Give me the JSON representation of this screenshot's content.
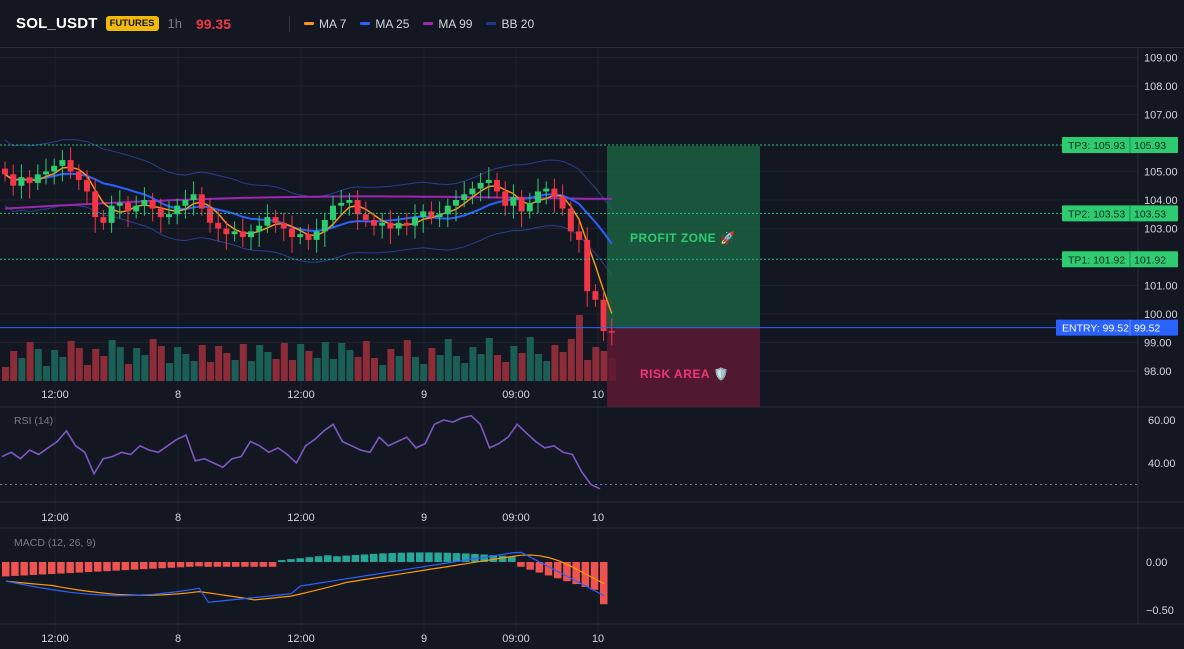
{
  "header": {
    "symbol": "SOL_USDT",
    "badge": "FUTURES",
    "timeframe": "1h",
    "last_price": "99.35",
    "legend": [
      {
        "label": "MA 7",
        "color": "#f7931a"
      },
      {
        "label": "MA 25",
        "color": "#2962ff"
      },
      {
        "label": "MA 99",
        "color": "#9c27b0"
      },
      {
        "label": "BB 20",
        "color": "#1e3a8a"
      }
    ]
  },
  "price_axis": {
    "labels": [
      "109.00",
      "108.00",
      "107.00",
      "105.00",
      "104.00",
      "103.00",
      "101.00",
      "100.00",
      "99.00",
      "98.00"
    ]
  },
  "time_axis": {
    "labels": [
      "12:00",
      "8",
      "12:00",
      "9",
      "09:00",
      "10"
    ]
  },
  "levels": [
    {
      "key": "tp3",
      "label": "TP3: 105.93",
      "value": "105.93",
      "price": 105.93
    },
    {
      "key": "tp2",
      "label": "TP2: 103.53",
      "value": "103.53",
      "price": 103.53
    },
    {
      "key": "tp1",
      "label": "TP1: 101.92",
      "value": "101.92",
      "price": 101.92
    },
    {
      "key": "entry",
      "label": "ENTRY: 99.52",
      "value": "99.52",
      "price": 99.52
    }
  ],
  "zones": {
    "profit": "PROFIT ZONE 🚀",
    "risk": "RISK AREA 🛡️"
  },
  "rsi": {
    "title": "RSI (14)",
    "labels": [
      "60.00",
      "40.00"
    ]
  },
  "macd": {
    "title": "MACD (12, 26, 9)",
    "labels": [
      "0.00",
      "−0.50"
    ]
  },
  "colors": {
    "up": "#26a69a",
    "up_bright": "#2ecc71",
    "down": "#f23645",
    "profit": "#1f8a55",
    "risk": "#7a1e3a"
  }
}
